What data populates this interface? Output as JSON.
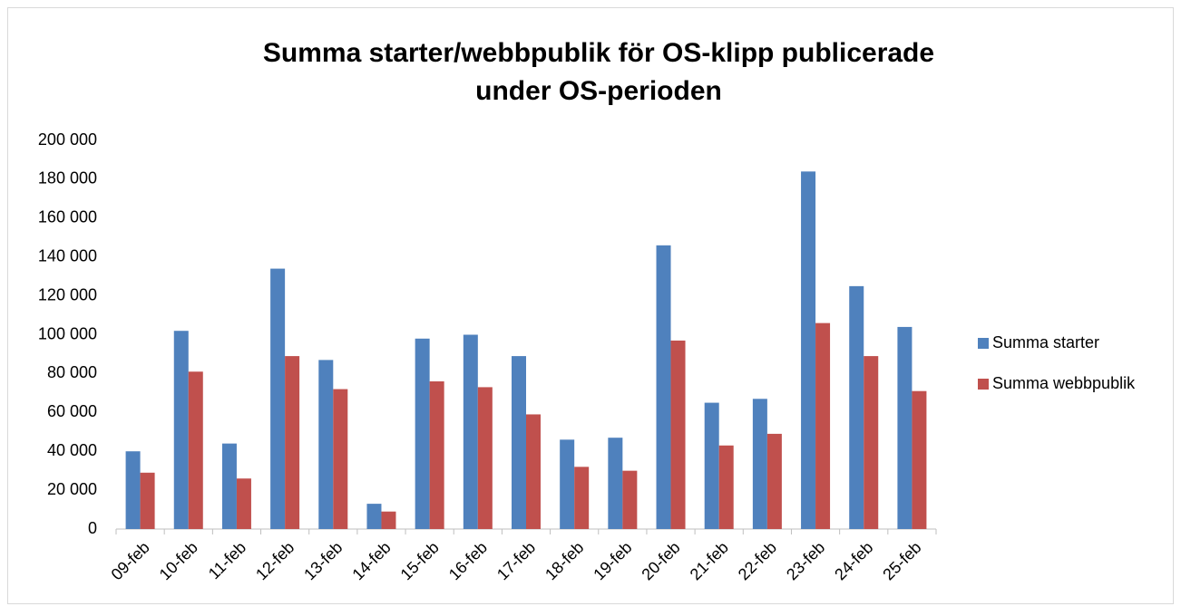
{
  "chart_data": {
    "type": "bar",
    "title": [
      "Summa starter/webbpublik för OS-klipp publicerade",
      "under OS-perioden"
    ],
    "categories": [
      "09-feb",
      "10-feb",
      "11-feb",
      "12-feb",
      "13-feb",
      "14-feb",
      "15-feb",
      "16-feb",
      "17-feb",
      "18-feb",
      "19-feb",
      "20-feb",
      "21-feb",
      "22-feb",
      "23-feb",
      "24-feb",
      "25-feb"
    ],
    "series": [
      {
        "name": "Summa starter",
        "color": "#4f81bd",
        "values": [
          40000,
          102000,
          44000,
          134000,
          87000,
          13000,
          98000,
          100000,
          89000,
          46000,
          47000,
          146000,
          65000,
          67000,
          184000,
          125000,
          104000
        ]
      },
      {
        "name": "Summa webbpublik",
        "color": "#c0504d",
        "values": [
          29000,
          81000,
          26000,
          89000,
          72000,
          9000,
          76000,
          73000,
          59000,
          32000,
          30000,
          97000,
          43000,
          49000,
          106000,
          89000,
          71000
        ]
      }
    ],
    "ylim": [
      0,
      200000
    ],
    "yticks": [
      0,
      {
        "value": 20000,
        "label": "20 000"
      },
      {
        "value": 40000,
        "label": "40 000"
      },
      {
        "value": 60000,
        "label": "60 000"
      },
      {
        "value": 80000,
        "label": "80 000"
      },
      {
        "value": 100000,
        "label": "100 000"
      },
      {
        "value": 120000,
        "label": "120 000"
      },
      {
        "value": 140000,
        "label": "140 000"
      },
      {
        "value": 160000,
        "label": "160 000"
      },
      {
        "value": 180000,
        "label": "180 000"
      },
      {
        "value": 200000,
        "label": "200 000"
      }
    ],
    "grid": false,
    "legend": "right"
  }
}
